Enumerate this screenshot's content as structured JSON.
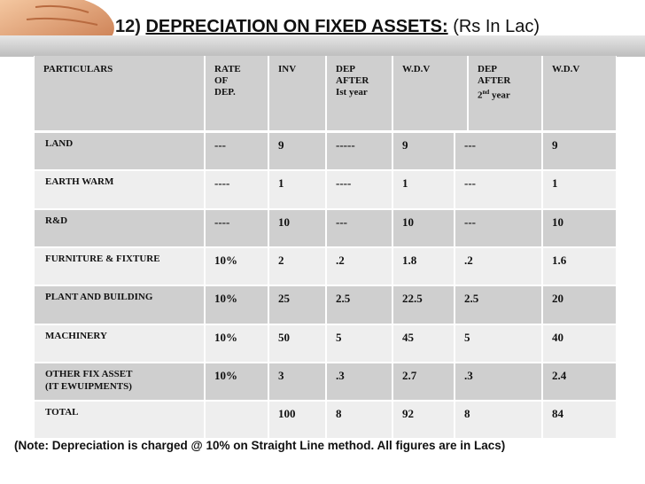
{
  "title": {
    "number": "12)",
    "main": "DEPRECIATION ON FIXED ASSETS:",
    "unit": "(Rs In Lac)"
  },
  "table": {
    "headers": [
      [
        "PARTICULARS"
      ],
      [
        "RATE",
        " OF",
        "DEP."
      ],
      [
        "INV"
      ],
      [
        "DEP",
        "AFTER",
        "Ist year"
      ],
      [
        "W.D.V"
      ],
      [
        "DEP",
        "AFTER",
        "2nd year"
      ],
      [
        "W.D.V"
      ]
    ],
    "rows": [
      [
        "LAND",
        "---",
        "9",
        "-----",
        "9",
        "---",
        "9"
      ],
      [
        "EARTH WARM",
        "----",
        "1",
        "----",
        "1",
        "---",
        "1"
      ],
      [
        "R&D",
        "----",
        "10",
        "---",
        "10",
        "---",
        "10"
      ],
      [
        "FURNITURE & FIXTURE",
        "10%",
        "2",
        ".2",
        "1.8",
        ".2",
        "1.6"
      ],
      [
        "PLANT AND BUILDING",
        "10%",
        "25",
        "2.5",
        "22.5",
        "2.5",
        "20"
      ],
      [
        "MACHINERY",
        "10%",
        "50",
        "5",
        "45",
        "5",
        "40"
      ],
      [
        "OTHER FIX ASSET\n(IT EWUIPMENTS)",
        "10%",
        "3",
        ".3",
        "2.7",
        ".3",
        "2.4"
      ],
      [
        "TOTAL",
        "",
        "100",
        "8",
        "92",
        "8",
        "84"
      ]
    ]
  },
  "note": "(Note: Depreciation is charged @ 10% on Straight Line method. All figures are in Lacs)",
  "colors": {
    "header_shade": "#cfcfcf",
    "row_light": "#eeeeee",
    "row_dark": "#cfcfcf",
    "border": "#ffffff"
  },
  "decor": {
    "image": "hand-holding-coins-icon"
  }
}
